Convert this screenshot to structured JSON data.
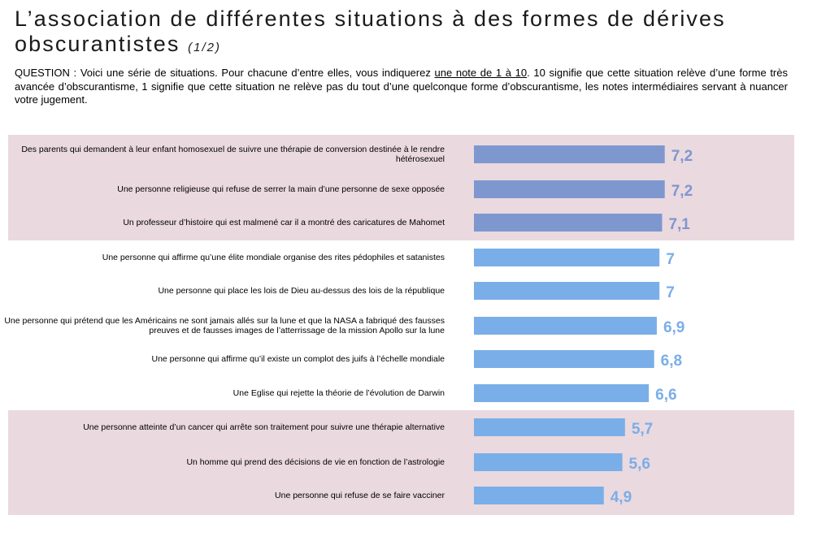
{
  "header": {
    "title_line1": "L’association de différentes situations à des formes de dérives",
    "title_line2": "obscurantistes",
    "title_part": "(1/2)"
  },
  "question": {
    "prefix": "QUESTION : Voici une série de situations. Pour chacune d’entre elles, vous indiquerez ",
    "underlined": "une note de 1 à 10",
    "suffix": ". 10 signifie que cette situation relève d’une forme très avancée d’obscurantisme, 1 signifie que cette situation ne relève pas du tout d’une quelconque forme d’obscurantisme, les notes intermédiaires servant à nuancer votre jugement."
  },
  "colors": {
    "band": "#ead9df",
    "bar_dark": "#7f97cf",
    "bar_light": "#7aaee8",
    "value_dark": "#7f97cf",
    "value_light": "#7aaee8"
  },
  "chart_data": {
    "type": "bar",
    "orientation": "horizontal",
    "xlim": [
      0,
      10
    ],
    "categories": [
      "Des parents qui demandent à leur enfant homosexuel de suivre une thérapie de conversion destinée à le rendre hétérosexuel",
      "Une personne religieuse qui refuse de serrer la main d’une personne de sexe opposée",
      "Un professeur d’histoire qui est malmené car il a montré des caricatures de Mahomet",
      "Une personne qui affirme qu’une élite mondiale organise des rites pédophiles et satanistes",
      "Une personne qui place les lois de Dieu au-dessus des lois de la république",
      "Une personne qui prétend que les Américains ne sont jamais allés sur la lune et que la NASA a fabriqué des fausses preuves et de fausses images de l’atterrissage de la mission Apollo sur la lune",
      "Une personne qui affirme qu’il existe un complot des juifs à l’échelle mondiale",
      "Une Eglise qui rejette la théorie de l’évolution de Darwin",
      "Une personne atteinte d’un cancer qui arrête son traitement pour suivre une thérapie alternative",
      "Un homme qui prend des décisions de vie en fonction de l’astrologie",
      "Une personne qui refuse de se faire vacciner"
    ],
    "values": [
      7.2,
      7.2,
      7.1,
      7,
      7,
      6.9,
      6.8,
      6.6,
      5.7,
      5.6,
      4.9
    ],
    "value_labels": [
      "7,2",
      "7,2",
      "7,1",
      "7",
      "7",
      "6,9",
      "6,8",
      "6,6",
      "5,7",
      "5,6",
      "4,9"
    ],
    "highlighted_groups": [
      [
        0,
        2
      ],
      [
        8,
        10
      ]
    ]
  }
}
